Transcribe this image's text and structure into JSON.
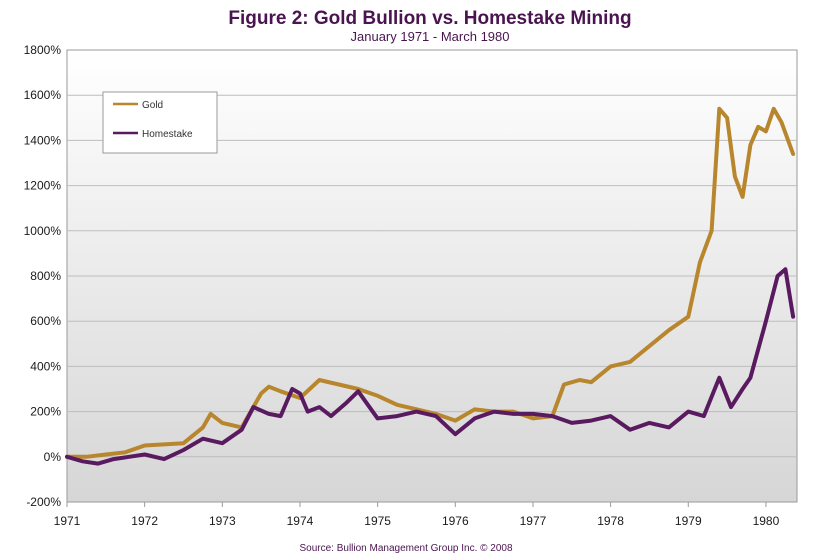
{
  "chart_data": {
    "type": "line",
    "title": "Figure 2: Gold Bullion vs. Homestake Mining",
    "subtitle": "January 1971 - March 1980",
    "source": "Source: Bullion Management Group Inc. © 2008",
    "xlabel": "",
    "ylabel": "",
    "xlim": [
      1971,
      1980.4
    ],
    "ylim": [
      -200,
      1800
    ],
    "x_ticks": [
      1971,
      1972,
      1973,
      1974,
      1975,
      1976,
      1977,
      1978,
      1979,
      1980
    ],
    "x_tick_labels": [
      "1971",
      "1972",
      "1973",
      "1974",
      "1975",
      "1976",
      "1977",
      "1978",
      "1979",
      "1980"
    ],
    "y_ticks": [
      -200,
      0,
      200,
      400,
      600,
      800,
      1000,
      1200,
      1400,
      1600,
      1800
    ],
    "y_tick_labels": [
      "-200%",
      "0%",
      "200%",
      "400%",
      "600%",
      "800%",
      "1000%",
      "1200%",
      "1400%",
      "1600%",
      "1800%"
    ],
    "grid": true,
    "legend_position": "top-left",
    "series": [
      {
        "name": "Gold",
        "color": "#b8862c",
        "x": [
          1971.0,
          1971.25,
          1971.5,
          1971.75,
          1972.0,
          1972.25,
          1972.5,
          1972.75,
          1972.85,
          1973.0,
          1973.25,
          1973.5,
          1973.6,
          1973.75,
          1974.0,
          1974.25,
          1974.5,
          1974.75,
          1975.0,
          1975.25,
          1975.5,
          1975.75,
          1976.0,
          1976.25,
          1976.5,
          1976.75,
          1977.0,
          1977.25,
          1977.4,
          1977.6,
          1977.75,
          1978.0,
          1978.25,
          1978.5,
          1978.75,
          1979.0,
          1979.15,
          1979.3,
          1979.4,
          1979.5,
          1979.6,
          1979.7,
          1979.8,
          1979.9,
          1980.0,
          1980.1,
          1980.2,
          1980.35
        ],
        "values": [
          0,
          0,
          10,
          20,
          50,
          55,
          60,
          130,
          190,
          150,
          130,
          280,
          310,
          290,
          260,
          340,
          320,
          300,
          270,
          230,
          210,
          190,
          160,
          210,
          200,
          200,
          170,
          180,
          320,
          340,
          330,
          400,
          420,
          490,
          560,
          620,
          860,
          1000,
          1540,
          1500,
          1240,
          1150,
          1380,
          1460,
          1440,
          1540,
          1480,
          1340
        ]
      },
      {
        "name": "Homestake",
        "color": "#5a1a60",
        "x": [
          1971.0,
          1971.1,
          1971.2,
          1971.4,
          1971.6,
          1971.8,
          1972.0,
          1972.25,
          1972.5,
          1972.75,
          1973.0,
          1973.25,
          1973.4,
          1973.6,
          1973.75,
          1973.9,
          1974.0,
          1974.1,
          1974.25,
          1974.4,
          1974.6,
          1974.75,
          1975.0,
          1975.25,
          1975.5,
          1975.75,
          1976.0,
          1976.25,
          1976.5,
          1976.75,
          1977.0,
          1977.25,
          1977.5,
          1977.75,
          1978.0,
          1978.25,
          1978.5,
          1978.75,
          1979.0,
          1979.2,
          1979.4,
          1979.55,
          1979.7,
          1979.8,
          1980.0,
          1980.15,
          1980.25,
          1980.35
        ],
        "values": [
          0,
          -10,
          -20,
          -30,
          -10,
          0,
          10,
          -10,
          30,
          80,
          60,
          120,
          220,
          190,
          180,
          300,
          280,
          200,
          220,
          180,
          240,
          290,
          170,
          180,
          200,
          180,
          100,
          170,
          200,
          190,
          190,
          180,
          150,
          160,
          180,
          120,
          150,
          130,
          200,
          180,
          350,
          220,
          300,
          350,
          600,
          800,
          830,
          620
        ]
      }
    ]
  }
}
